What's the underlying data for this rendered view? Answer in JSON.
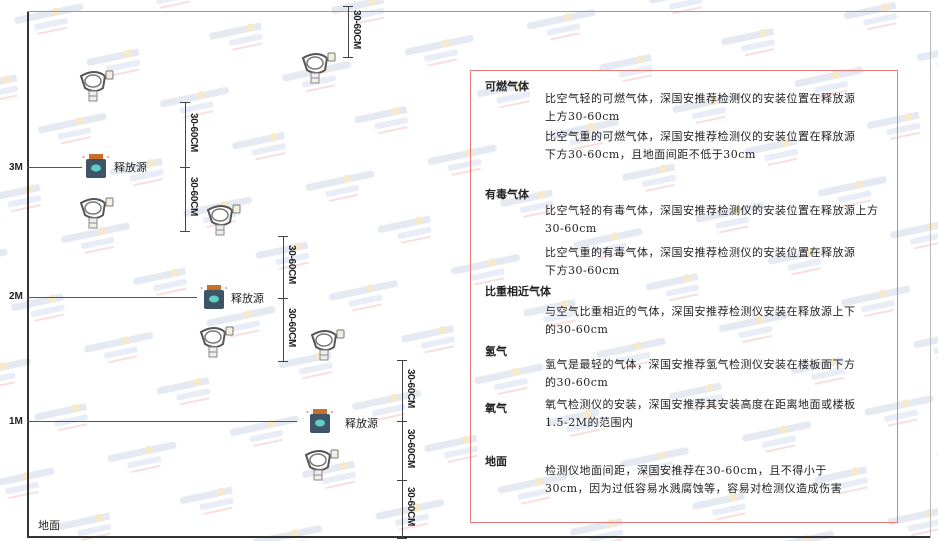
{
  "watermark": "SINGOAN 深国安",
  "levels": {
    "m3": "3M",
    "m2": "2M",
    "m1": "1M"
  },
  "ground": "地面",
  "source_label": "释放源",
  "dim_label": "30-60CM",
  "legend": {
    "combustible": {
      "title": "可燃气体",
      "lighter": "比空气轻的可燃气体，深国安推荐检测仪的安装位置在释放源上方30-60cm",
      "heavier": "比空气重的可燃气体，深国安推荐检测仪的安装位置在释放源下方30-60cm，且地面间距不低于30cm"
    },
    "toxic": {
      "title": "有毒气体",
      "lighter": "比空气轻的有毒气体，深国安推荐检测仪的安装位置在释放源上方30-60cm",
      "heavier": "比空气重的有毒气体，深国安推荐检测仪的安装位置在释放源下方30-60cm"
    },
    "similar": {
      "title": "比重相近气体",
      "text": "与空气比重相近的气体，深国安推荐检测仪安装在释放源上下的30-60cm"
    },
    "hydrogen": {
      "title": "氢气",
      "text": "氢气是最轻的气体，深国安推荐氢气检测仪安装在楼板面下方的30-60cm"
    },
    "oxygen": {
      "title": "氧气",
      "text": "氧气检测仪的安装，深国安推荐其安装高度在距离地面或楼板1.5-2M的范围内"
    },
    "ground": {
      "title": "地面",
      "text": "检测仪地面间距，深国安推荐在30-60cm，且不得小于30cm，因为过低容易水溅腐蚀等，容易对检测仪造成伤害"
    }
  },
  "colors": {
    "frame": "#e87a7a",
    "source": "#3d5566",
    "source_cap": "#c8702a",
    "detector": "#555555"
  }
}
